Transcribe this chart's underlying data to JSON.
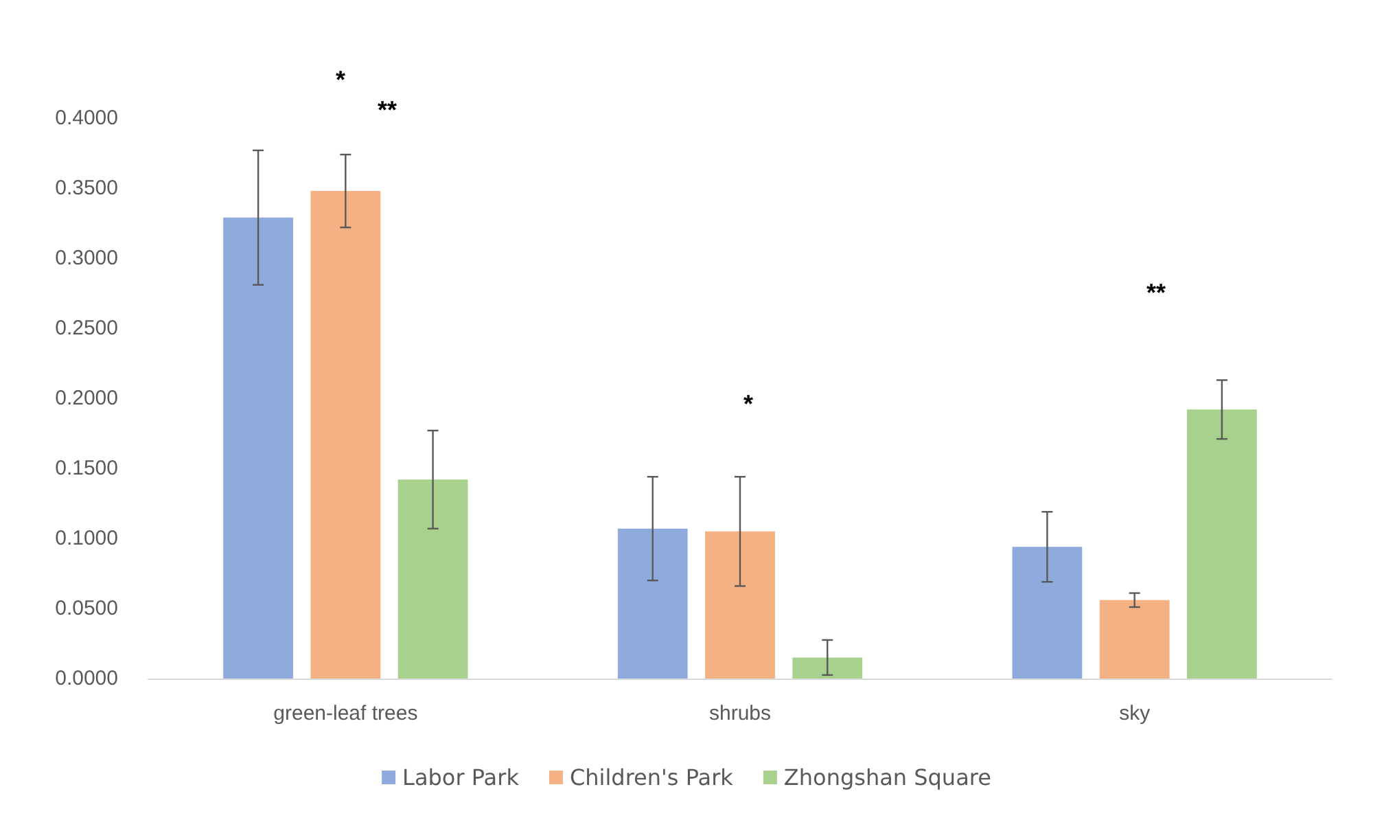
{
  "chart_data": {
    "type": "bar",
    "categories": [
      "green-leaf trees",
      "shrubs",
      "sky"
    ],
    "series": [
      {
        "name": "Labor Park",
        "color": "#8faadc",
        "values": [
          0.329,
          0.107,
          0.094
        ],
        "errors": [
          0.048,
          0.037,
          0.025
        ]
      },
      {
        "name": "Children's Park",
        "color": "#f4b183",
        "values": [
          0.348,
          0.105,
          0.056
        ],
        "errors": [
          0.026,
          0.039,
          0.005
        ]
      },
      {
        "name": "Zhongshan Square",
        "color": "#a9d18e",
        "values": [
          0.142,
          0.015,
          0.192
        ],
        "errors": [
          0.035,
          0.0125,
          0.021
        ]
      }
    ],
    "ylim": [
      0,
      0.4
    ],
    "yticks": [
      {
        "value": 0,
        "label": "0.0000"
      },
      {
        "value": 0.05,
        "label": "0.0500"
      },
      {
        "value": 0.1,
        "label": "0.1000"
      },
      {
        "value": 0.15,
        "label": "0.1500"
      },
      {
        "value": 0.2,
        "label": "0.2000"
      },
      {
        "value": 0.25,
        "label": "0.2500"
      },
      {
        "value": 0.3,
        "label": "0.3000"
      },
      {
        "value": 0.35,
        "label": "0.3500"
      },
      {
        "value": 0.4,
        "label": "0.4000"
      }
    ],
    "annotations": [
      "*",
      "**",
      "*",
      "**"
    ],
    "grid": false,
    "legend": "bottom"
  }
}
